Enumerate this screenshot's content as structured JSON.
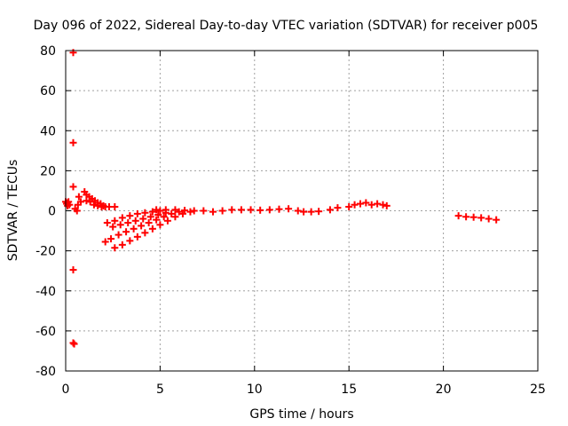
{
  "chart_data": {
    "type": "scatter",
    "title": "Day 096 of 2022, Sidereal Day-to-day VTEC variation (SDTVAR) for receiver p005",
    "xlabel": "GPS time / hours",
    "ylabel": "SDTVAR / TECUs",
    "xlim": [
      0,
      25
    ],
    "ylim": [
      -80,
      80
    ],
    "xticks": [
      0,
      5,
      10,
      15,
      20,
      25
    ],
    "yticks": [
      -80,
      -60,
      -40,
      -20,
      0,
      20,
      40,
      60,
      80
    ],
    "grid": true,
    "marker": "+",
    "marker_color": "#ff0000",
    "series": [
      {
        "name": "SDTVAR",
        "points": [
          [
            0.4,
            79
          ],
          [
            0.4,
            34
          ],
          [
            0.4,
            12
          ],
          [
            0.4,
            -29.5
          ],
          [
            0.4,
            -66
          ],
          [
            0.45,
            -66.5
          ],
          [
            0.0,
            4.5
          ],
          [
            0.05,
            3.5
          ],
          [
            0.1,
            4
          ],
          [
            0.15,
            4.5
          ],
          [
            0.2,
            3
          ],
          [
            0.1,
            2.5
          ],
          [
            0.5,
            1
          ],
          [
            0.65,
            3
          ],
          [
            0.7,
            7
          ],
          [
            0.8,
            4.5
          ],
          [
            0.6,
            0
          ],
          [
            1.0,
            9.5
          ],
          [
            1.1,
            8
          ],
          [
            1.25,
            7
          ],
          [
            1.4,
            6
          ],
          [
            1.55,
            5
          ],
          [
            1.7,
            4
          ],
          [
            1.85,
            3.5
          ],
          [
            2.0,
            2.5
          ],
          [
            1.1,
            5
          ],
          [
            1.3,
            4.5
          ],
          [
            1.5,
            3
          ],
          [
            1.7,
            2.5
          ],
          [
            1.9,
            2
          ],
          [
            2.1,
            2
          ],
          [
            2.3,
            2
          ],
          [
            2.6,
            2
          ],
          [
            2.2,
            -6
          ],
          [
            2.6,
            -5
          ],
          [
            3.0,
            -3.5
          ],
          [
            3.4,
            -2.5
          ],
          [
            3.8,
            -1.5
          ],
          [
            4.2,
            -1
          ],
          [
            4.6,
            -0.5
          ],
          [
            5.0,
            0
          ],
          [
            2.1,
            -15.5
          ],
          [
            2.4,
            -14
          ],
          [
            2.8,
            -12
          ],
          [
            3.2,
            -10.5
          ],
          [
            3.6,
            -9
          ],
          [
            4.0,
            -7.5
          ],
          [
            4.4,
            -6
          ],
          [
            4.8,
            -4.5
          ],
          [
            5.2,
            -3
          ],
          [
            5.6,
            -1.5
          ],
          [
            6.0,
            -0.5
          ],
          [
            2.6,
            -18.5
          ],
          [
            3.0,
            -17
          ],
          [
            3.4,
            -15
          ],
          [
            3.8,
            -13
          ],
          [
            4.2,
            -11
          ],
          [
            4.6,
            -9
          ],
          [
            5.0,
            -7
          ],
          [
            5.4,
            -5
          ],
          [
            5.8,
            -3
          ],
          [
            6.2,
            -1.5
          ],
          [
            6.6,
            -0.5
          ],
          [
            2.5,
            -8
          ],
          [
            2.9,
            -7
          ],
          [
            3.3,
            -6
          ],
          [
            3.7,
            -5
          ],
          [
            4.1,
            -4
          ],
          [
            4.5,
            -3
          ],
          [
            4.9,
            -2
          ],
          [
            5.3,
            -1
          ],
          [
            4.8,
            0.5
          ],
          [
            5.3,
            0.5
          ],
          [
            5.8,
            0.5
          ],
          [
            6.3,
            0.2
          ],
          [
            6.8,
            0
          ],
          [
            7.3,
            0
          ],
          [
            7.8,
            -0.5
          ],
          [
            8.3,
            0
          ],
          [
            8.8,
            0.5
          ],
          [
            9.3,
            0.5
          ],
          [
            9.8,
            0.5
          ],
          [
            10.3,
            0.3
          ],
          [
            10.8,
            0.5
          ],
          [
            11.3,
            0.8
          ],
          [
            11.8,
            1
          ],
          [
            12.3,
            0
          ],
          [
            12.6,
            -0.5
          ],
          [
            13.0,
            -0.5
          ],
          [
            13.4,
            -0.3
          ],
          [
            14.0,
            0.5
          ],
          [
            14.4,
            1.5
          ],
          [
            15.0,
            2
          ],
          [
            15.3,
            3
          ],
          [
            15.6,
            3.5
          ],
          [
            15.9,
            4
          ],
          [
            16.2,
            3
          ],
          [
            16.5,
            3.5
          ],
          [
            16.8,
            3
          ],
          [
            17.0,
            2.5
          ],
          [
            20.8,
            -2.5
          ],
          [
            21.2,
            -3
          ],
          [
            21.6,
            -3.2
          ],
          [
            22.0,
            -3.5
          ],
          [
            22.4,
            -4
          ],
          [
            22.8,
            -4.5
          ]
        ]
      }
    ]
  }
}
